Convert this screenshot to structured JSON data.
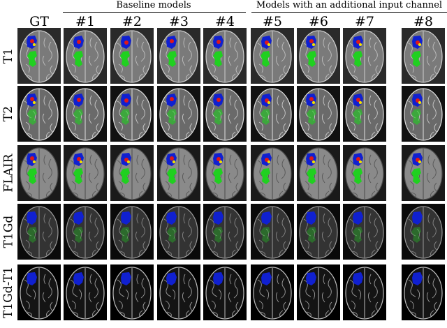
{
  "figure": {
    "column_groups": [
      {
        "label": "Baseline models"
      },
      {
        "label": "Models with an additional input channel"
      }
    ],
    "columns": [
      "GT",
      "#1",
      "#2",
      "#3",
      "#4",
      "#5",
      "#6",
      "#7",
      "#8"
    ],
    "rows": [
      {
        "label": "T1",
        "brain": "#7a7a7a",
        "bg": "#2a2a2a",
        "sulcus": "#cfcfcf",
        "base_alpha": 1.0,
        "edema_alpha": 1.0
      },
      {
        "label": "T2",
        "brain": "#6a6a6a",
        "bg": "#111111",
        "sulcus": "#e0e0e0",
        "base_alpha": 1.0,
        "edema_alpha": 0.6
      },
      {
        "label": "FLAIR",
        "brain": "#8a8a8a",
        "bg": "#1a1a1a",
        "sulcus": "#4a4a4a",
        "base_alpha": 1.0,
        "edema_alpha": 1.0
      },
      {
        "label": "T1Gd",
        "brain": "#333333",
        "bg": "#0a0a0a",
        "sulcus": "#9a9a9a",
        "base_alpha": 1.0,
        "edema_alpha": 0.35
      },
      {
        "label": "T1Gd-T1",
        "brain": "#141414",
        "bg": "#000000",
        "sulcus": "#bdbdbd",
        "base_alpha": 1.0,
        "edema_alpha": 0.0
      }
    ],
    "label_colors": {
      "core": "#1020d0",
      "enhancing": "#e01818",
      "necrosis": "#f0e000",
      "edema": "#20d020"
    }
  }
}
